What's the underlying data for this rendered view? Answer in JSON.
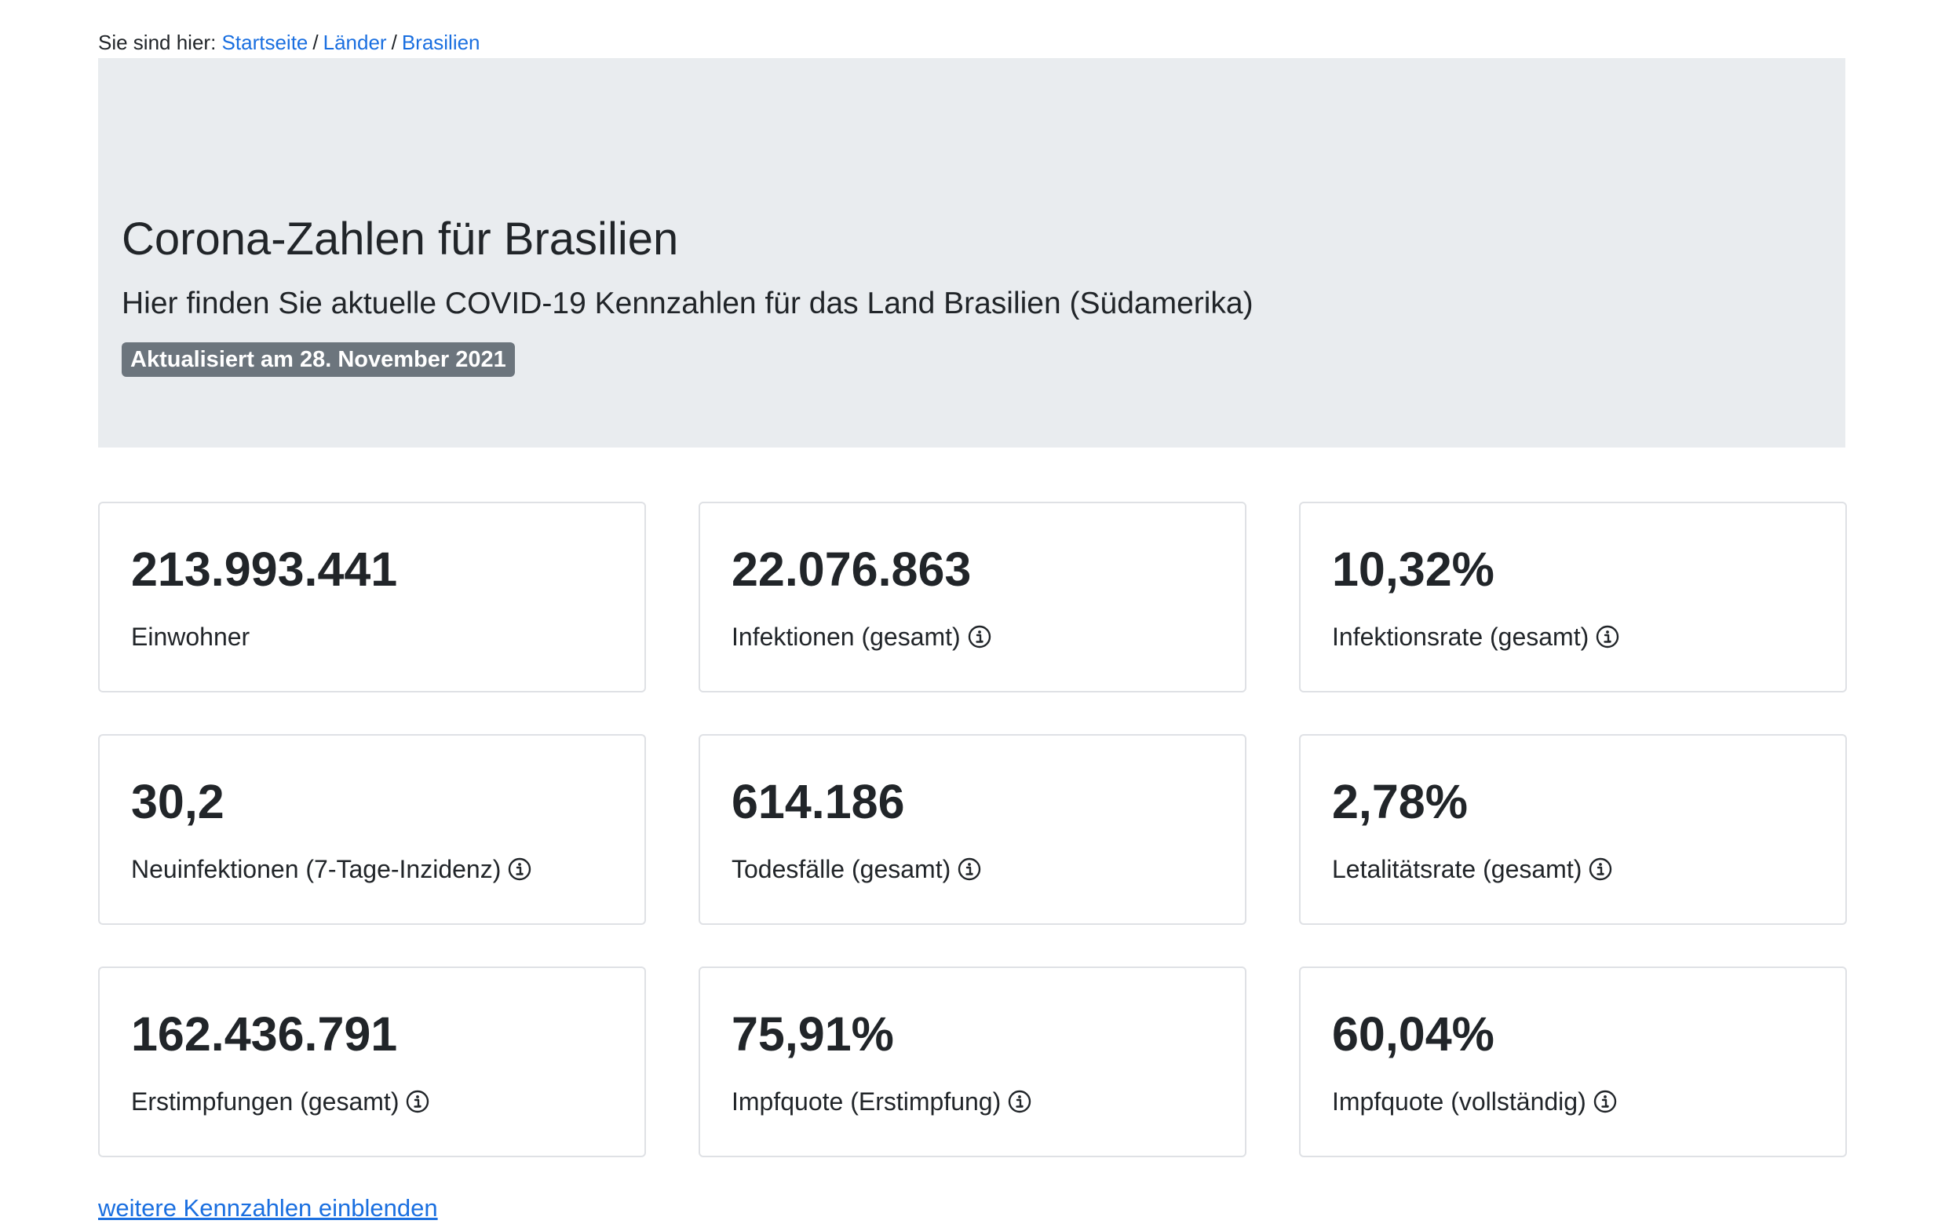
{
  "breadcrumb": {
    "prefix": "Sie sind hier:",
    "items": [
      "Startseite",
      "Länder",
      "Brasilien"
    ],
    "separator": "/"
  },
  "hero": {
    "title": "Corona-Zahlen für Brasilien",
    "lead": "Hier finden Sie aktuelle COVID-19 Kennzahlen für das Land Brasilien (Südamerika)",
    "badge": "Aktualisiert am 28. November 2021"
  },
  "cards": [
    {
      "value": "213.993.441",
      "label": "Einwohner",
      "info": false
    },
    {
      "value": "22.076.863",
      "label": "Infektionen (gesamt)",
      "info": true
    },
    {
      "value": "10,32%",
      "label": "Infektionsrate (gesamt)",
      "info": true
    },
    {
      "value": "30,2",
      "label": "Neuinfektionen (7-Tage-Inzidenz)",
      "info": true
    },
    {
      "value": "614.186",
      "label": "Todesfälle (gesamt)",
      "info": true
    },
    {
      "value": "2,78%",
      "label": "Letalitätsrate (gesamt)",
      "info": true
    },
    {
      "value": "162.436.791",
      "label": "Erstimpfungen (gesamt)",
      "info": true
    },
    {
      "value": "75,91%",
      "label": "Impfquote (Erstimpfung)",
      "info": true
    },
    {
      "value": "60,04%",
      "label": "Impfquote (vollständig)",
      "info": true
    }
  ],
  "more_link": "weitere Kennzahlen einblenden",
  "colors": {
    "link": "#1a6fe0",
    "hero_bg": "#e9ecef",
    "badge_bg": "#6c757d",
    "card_border": "#dfe1e5"
  },
  "icons": {
    "info": "info-circle-icon"
  }
}
